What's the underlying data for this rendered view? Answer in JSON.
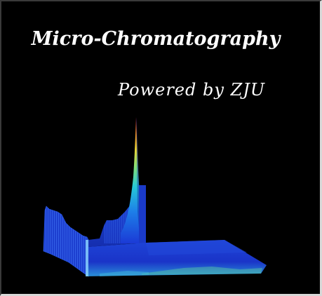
{
  "splash": {
    "title": "Micro-Chromatography",
    "subtitle": "Powered by ZJU",
    "graphic": {
      "description_icon": "3d-chromatogram-icon",
      "colors": {
        "background": "#000000",
        "text": "#ffffff",
        "low": "#1a35d8",
        "mid": "#27c8e0",
        "high": "#f2d22a",
        "peak": "#e8271a"
      }
    }
  }
}
